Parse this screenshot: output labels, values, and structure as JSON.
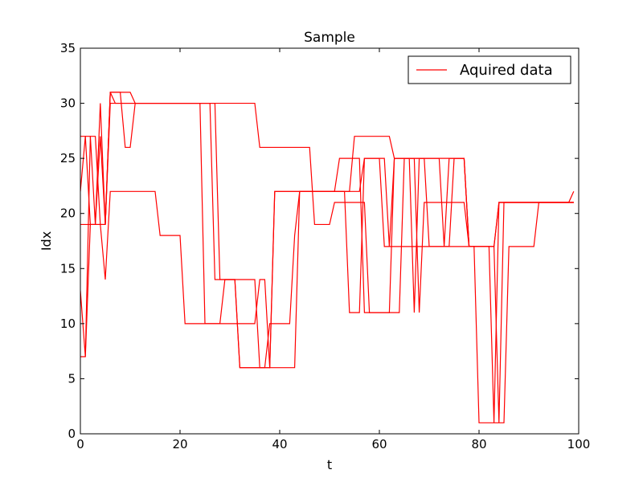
{
  "chart_data": {
    "type": "line",
    "title": "Sample",
    "xlabel": "t",
    "ylabel": "Idx",
    "xlim": [
      0,
      100
    ],
    "ylim": [
      0,
      35
    ],
    "xticks": [
      0,
      20,
      40,
      60,
      80,
      100
    ],
    "yticks": [
      0,
      5,
      10,
      15,
      20,
      25,
      30,
      35
    ],
    "grid": false,
    "legend": {
      "placement": "top-right",
      "entries": [
        "Aquired data"
      ]
    },
    "line_color": "#ff0000",
    "series": [
      {
        "name": "Aquired data",
        "x": [
          0,
          1,
          2,
          3,
          4,
          5,
          6,
          7,
          8,
          9,
          10,
          11,
          12,
          13,
          14,
          15,
          16,
          17,
          18,
          19,
          20,
          21,
          22,
          23,
          24,
          25,
          26,
          27,
          28,
          29,
          30,
          31,
          32,
          33,
          34,
          35,
          36,
          37,
          38,
          39,
          40,
          41,
          42,
          43,
          44,
          45,
          46,
          47,
          48,
          49,
          50,
          51,
          52,
          53,
          54,
          55,
          56,
          57,
          58,
          59,
          60,
          61,
          62,
          63,
          64,
          65,
          66,
          67,
          68,
          69,
          70,
          71,
          72,
          73,
          74,
          75,
          76,
          77,
          78,
          79,
          80,
          81,
          82,
          83,
          84,
          85,
          86,
          87,
          88,
          89,
          90,
          91,
          92,
          93,
          94,
          95,
          96,
          97,
          98,
          99
        ],
        "y": [
          22,
          27,
          27,
          19,
          27,
          19,
          31,
          31,
          31,
          26,
          26,
          30,
          30,
          30,
          30,
          30,
          30,
          30,
          30,
          30,
          30,
          30,
          30,
          30,
          30,
          30,
          30,
          30,
          14,
          14,
          14,
          14,
          14,
          14,
          14,
          14,
          6,
          6,
          6,
          22,
          22,
          22,
          22,
          22,
          22,
          22,
          22,
          22,
          22,
          22,
          22,
          22,
          22,
          22,
          22,
          27,
          27,
          27,
          27,
          27,
          27,
          27,
          27,
          25,
          25,
          25,
          25,
          25,
          25,
          25,
          25,
          25,
          25,
          25,
          25,
          25,
          25,
          25,
          17,
          17,
          17,
          17,
          17,
          1,
          21,
          21,
          21,
          21,
          21,
          21,
          21,
          21,
          21,
          21,
          21,
          21,
          21,
          21,
          21,
          22
        ]
      },
      {
        "name": "",
        "x": [
          0,
          1,
          2,
          3,
          4,
          5,
          6,
          7,
          8,
          9,
          10,
          11,
          12,
          13,
          14,
          15,
          16,
          17,
          18,
          19,
          20,
          21,
          22,
          23,
          24,
          25,
          26,
          27,
          28,
          29,
          30,
          31,
          32,
          33,
          34,
          35,
          36,
          37,
          38,
          39,
          40,
          41,
          42,
          43,
          44,
          45,
          46,
          47,
          48,
          49,
          50,
          51,
          52,
          53,
          54,
          55,
          56,
          57,
          58,
          59,
          60,
          61,
          62,
          63,
          64,
          65,
          66,
          67,
          68,
          69,
          70,
          71,
          72,
          73,
          74,
          75,
          76,
          77,
          78,
          79,
          80,
          81,
          82,
          83,
          84,
          85,
          86,
          87,
          88,
          89,
          90,
          91,
          92,
          93,
          94,
          95,
          96,
          97,
          98,
          99
        ],
        "y": [
          13,
          7,
          27,
          27,
          19,
          19,
          30,
          30,
          30,
          30,
          30,
          30,
          30,
          30,
          30,
          30,
          30,
          30,
          30,
          30,
          30,
          30,
          30,
          30,
          30,
          30,
          30,
          30,
          30,
          30,
          30,
          30,
          30,
          30,
          30,
          30,
          26,
          26,
          26,
          26,
          26,
          26,
          26,
          26,
          26,
          26,
          26,
          19,
          19,
          19,
          19,
          21,
          21,
          21,
          21,
          21,
          21,
          21,
          11,
          11,
          11,
          11,
          11,
          25,
          25,
          25,
          25,
          25,
          25,
          25,
          17,
          17,
          17,
          17,
          17,
          25,
          25,
          25,
          17,
          17,
          17,
          17,
          17,
          17,
          1,
          21,
          21,
          21,
          21,
          21,
          21,
          21,
          21,
          21,
          21,
          21,
          21,
          21,
          21,
          21
        ]
      },
      {
        "name": "",
        "x": [
          0,
          1,
          2,
          3,
          4,
          5,
          6,
          7,
          8,
          9,
          10,
          11,
          12,
          13,
          14,
          15,
          16,
          17,
          18,
          19,
          20,
          21,
          22,
          23,
          24,
          25,
          26,
          27,
          28,
          29,
          30,
          31,
          32,
          33,
          34,
          35,
          36,
          37,
          38,
          39,
          40,
          41,
          42,
          43,
          44,
          45,
          46,
          47,
          48,
          49,
          50,
          51,
          52,
          53,
          54,
          55,
          56,
          57,
          58,
          59,
          60,
          61,
          62,
          63,
          64,
          65,
          66,
          67,
          68,
          69,
          70,
          71,
          72,
          73,
          74,
          75,
          76,
          77,
          78,
          79,
          80,
          81,
          82,
          83,
          84,
          85,
          86,
          87,
          88,
          89,
          90,
          91,
          92,
          93,
          94,
          95,
          96,
          97,
          98,
          99
        ],
        "y": [
          27,
          27,
          19,
          19,
          19,
          14,
          22,
          22,
          22,
          22,
          22,
          22,
          22,
          22,
          22,
          22,
          18,
          18,
          18,
          18,
          18,
          10,
          10,
          10,
          10,
          10,
          10,
          10,
          10,
          10,
          10,
          10,
          10,
          10,
          10,
          10,
          14,
          14,
          6,
          6,
          6,
          6,
          6,
          6,
          22,
          22,
          22,
          22,
          22,
          22,
          22,
          22,
          22,
          22,
          11,
          11,
          11,
          25,
          25,
          25,
          25,
          25,
          17,
          17,
          17,
          17,
          17,
          17,
          17,
          17,
          17,
          17,
          17,
          17,
          17,
          17,
          17,
          17,
          17,
          17,
          1,
          1,
          1,
          1,
          1,
          1,
          17,
          17,
          17,
          17,
          17,
          17,
          21,
          21,
          21,
          21,
          21,
          21,
          21,
          21
        ]
      },
      {
        "name": "",
        "x": [
          0,
          1,
          2,
          3,
          4,
          5,
          6,
          7,
          8,
          9,
          10,
          11,
          12,
          13,
          14,
          15,
          16,
          17,
          18,
          19,
          20,
          21,
          22,
          23,
          24,
          25,
          26,
          27,
          28,
          29,
          30,
          31,
          32,
          33,
          34,
          35,
          36,
          37,
          38,
          39,
          40,
          41,
          42,
          43,
          44,
          45,
          46,
          47,
          48,
          49,
          50,
          51,
          52,
          53,
          54,
          55,
          56,
          57,
          58,
          59,
          60,
          61,
          62,
          63,
          64,
          65,
          66,
          67,
          68,
          69,
          70,
          71,
          72,
          73,
          74,
          75,
          76,
          77,
          78,
          79,
          80,
          81,
          82,
          83,
          84,
          85,
          86,
          87,
          88,
          89,
          90,
          91,
          92,
          93,
          94,
          95,
          96,
          97,
          98,
          99
        ],
        "y": [
          7,
          7,
          19,
          19,
          30,
          19,
          31,
          30,
          30,
          30,
          30,
          30,
          30,
          30,
          30,
          30,
          30,
          30,
          30,
          30,
          30,
          30,
          30,
          30,
          30,
          10,
          10,
          10,
          10,
          14,
          14,
          14,
          6,
          6,
          6,
          6,
          6,
          6,
          10,
          10,
          10,
          10,
          10,
          18,
          22,
          22,
          22,
          22,
          22,
          22,
          22,
          22,
          25,
          25,
          25,
          25,
          25,
          11,
          11,
          11,
          11,
          11,
          11,
          11,
          11,
          25,
          25,
          25,
          11,
          21,
          21,
          21,
          21,
          21,
          21,
          21,
          21,
          21,
          17,
          17,
          17,
          17,
          17,
          17,
          21,
          21,
          21,
          21,
          21,
          21,
          21,
          21,
          21,
          21,
          21,
          21,
          21,
          21,
          21,
          21
        ]
      },
      {
        "name": "",
        "x": [
          0,
          1,
          2,
          3,
          4,
          5,
          6,
          7,
          8,
          9,
          10,
          11,
          12,
          13,
          14,
          15,
          16,
          17,
          18,
          19,
          20,
          21,
          22,
          23,
          24,
          25,
          26,
          27,
          28,
          29,
          30,
          31,
          32,
          33,
          34,
          35,
          36,
          37,
          38,
          39,
          40,
          41,
          42,
          43,
          44,
          45,
          46,
          47,
          48,
          49,
          50,
          51,
          52,
          53,
          54,
          55,
          56,
          57,
          58,
          59,
          60,
          61,
          62,
          63,
          64,
          65,
          66,
          67,
          68,
          69,
          70,
          71,
          72,
          73,
          74,
          75,
          76,
          77,
          78,
          79,
          80,
          81,
          82,
          83,
          84,
          85,
          86,
          87,
          88,
          89,
          90,
          91,
          92,
          93,
          94,
          95,
          96,
          97,
          98,
          99
        ],
        "y": [
          19,
          19,
          19,
          19,
          19,
          19,
          31,
          31,
          31,
          31,
          31,
          30,
          30,
          30,
          30,
          30,
          30,
          30,
          30,
          30,
          30,
          30,
          30,
          30,
          30,
          30,
          30,
          14,
          14,
          14,
          14,
          14,
          6,
          6,
          6,
          6,
          6,
          6,
          6,
          22,
          22,
          22,
          22,
          22,
          22,
          22,
          22,
          22,
          22,
          22,
          22,
          22,
          22,
          22,
          22,
          22,
          22,
          25,
          25,
          25,
          25,
          17,
          17,
          25,
          25,
          25,
          25,
          11,
          25,
          25,
          25,
          25,
          25,
          17,
          25,
          25,
          25,
          25,
          17,
          17,
          17,
          17,
          17,
          17,
          21,
          21,
          21,
          21,
          21,
          21,
          21,
          21,
          21,
          21,
          21,
          21,
          21,
          21,
          21,
          21
        ]
      }
    ]
  }
}
